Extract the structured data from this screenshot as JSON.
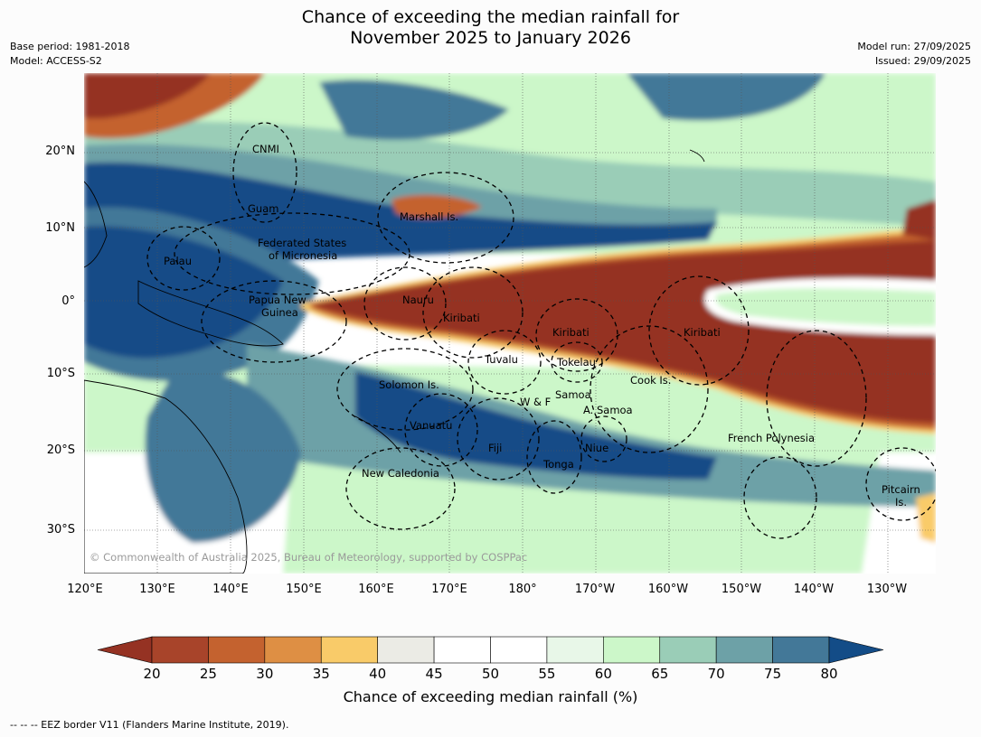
{
  "title_line1": "Chance of exceeding the median rainfall for",
  "title_line2": "November 2025 to January 2026",
  "base_period": "Base period: 1981-2018",
  "model": "Model: ACCESS-S2",
  "model_run": "Model run: 27/09/2025",
  "issued": "Issued: 29/09/2025",
  "latitude_labels": [
    "20°N",
    "10°N",
    "0°",
    "10°S",
    "20°S",
    "30°S"
  ],
  "longitude_labels": [
    "120°E",
    "130°E",
    "140°E",
    "150°E",
    "160°E",
    "170°E",
    "180°",
    "170°W",
    "160°W",
    "150°W",
    "140°W",
    "130°W"
  ],
  "places": [
    {
      "name": "CNMI"
    },
    {
      "name": "Guam"
    },
    {
      "name": "Marshall Is."
    },
    {
      "name": "Federated States"
    },
    {
      "name": "of Micronesia"
    },
    {
      "name": "Palau"
    },
    {
      "name": "Papua New"
    },
    {
      "name": "Guinea"
    },
    {
      "name": "Nauru"
    },
    {
      "name": "Kiribati"
    },
    {
      "name": "Kiribati"
    },
    {
      "name": "Kiribati"
    },
    {
      "name": "Tuvalu"
    },
    {
      "name": "Tokelau"
    },
    {
      "name": "Cook Is."
    },
    {
      "name": "Solomon Is."
    },
    {
      "name": "W & F"
    },
    {
      "name": "Samoa"
    },
    {
      "name": "A. Samoa"
    },
    {
      "name": "Vanuatu"
    },
    {
      "name": "Fiji"
    },
    {
      "name": "Niue"
    },
    {
      "name": "Tonga"
    },
    {
      "name": "French Polynesia"
    },
    {
      "name": "New Caledonia"
    },
    {
      "name": "Pitcairn"
    },
    {
      "name": "Is."
    }
  ],
  "copyright": "© Commonwealth of Australia 2025, Bureau of Meteorology, supported by COSPPac",
  "colorbar": {
    "title": "Chance of exceeding median rainfall (%)",
    "ticks": [
      "20",
      "25",
      "30",
      "35",
      "40",
      "45",
      "50",
      "55",
      "60",
      "65",
      "70",
      "75",
      "80"
    ],
    "colors": [
      "#a8442a",
      "#c4622f",
      "#de8f44",
      "#f9cb69",
      "#ebebe5",
      "#ffffff",
      "#ffffff",
      "#e8f7e8",
      "#ccf7c9",
      "#9acdb7",
      "#6da1a7",
      "#437898"
    ],
    "under_color": "#953223",
    "over_color": "#134c87"
  },
  "footer": "-- -- -- EEZ border V11 (Flanders Marine Institute, 2019)."
}
